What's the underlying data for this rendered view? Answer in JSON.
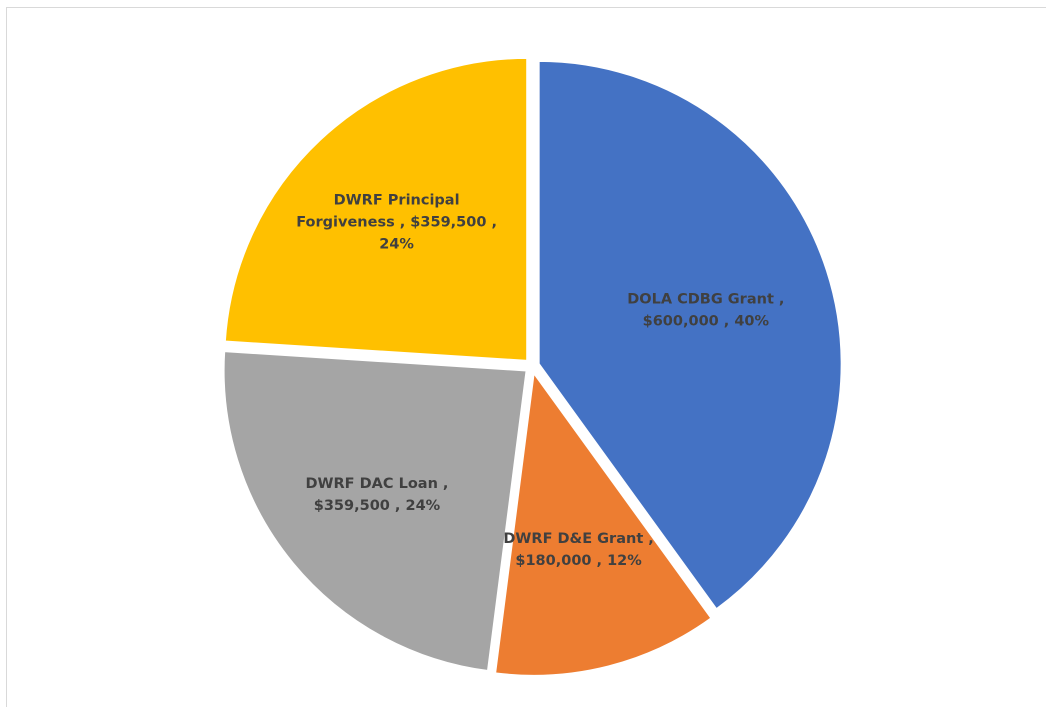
{
  "chart_data": {
    "type": "pie",
    "title": "",
    "slices": [
      {
        "label_lines": [
          "DOLA CDBG Grant ,",
          "$600,000 , 40%"
        ],
        "category": "DOLA CDBG Grant",
        "value": 600000,
        "percent": 40,
        "color": "#4472C4"
      },
      {
        "label_lines": [
          "DWRF D&E Grant ,",
          "$180,000 , 12%"
        ],
        "category": "DWRF D&E Grant",
        "value": 180000,
        "percent": 12,
        "color": "#ED7D31"
      },
      {
        "label_lines": [
          "DWRF DAC Loan ,",
          "$359,500 , 24%"
        ],
        "category": "DWRF DAC Loan",
        "value": 359500,
        "percent": 24,
        "color": "#A5A5A5"
      },
      {
        "label_lines": [
          "DWRF Principal",
          "Forgiveness , $359,500 ,",
          "24%"
        ],
        "category": "DWRF Principal Forgiveness",
        "value": 359500,
        "percent": 24,
        "color": "#FFC000"
      }
    ],
    "legend": "none",
    "start_angle": "12 o'clock, clockwise",
    "exploded": true
  }
}
